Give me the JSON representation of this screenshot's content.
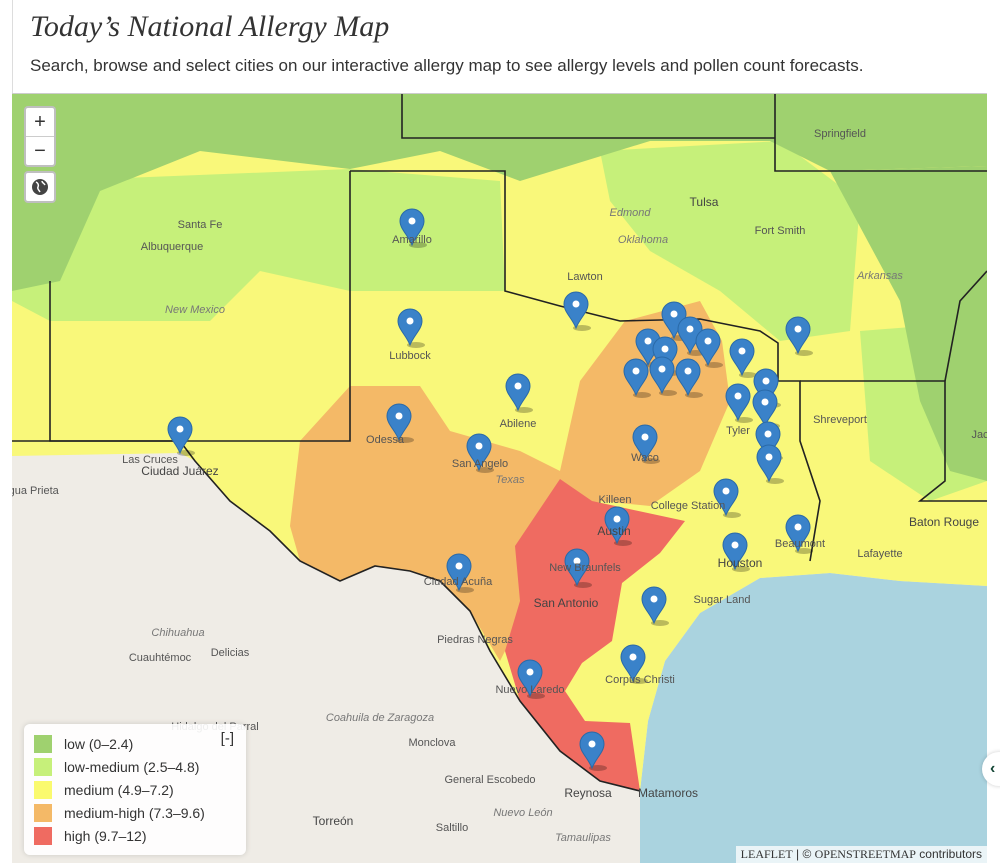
{
  "header": {
    "title": "Today’s National Allergy Map",
    "subtitle": "Search, browse and select cities on our interactive allergy map to see allergy levels and pollen count forecasts."
  },
  "controls": {
    "zoom_in": "+",
    "zoom_out": "−",
    "locate_icon": "globe-icon"
  },
  "legend": {
    "toggle": "[-]",
    "items": [
      {
        "label": "low (0–2.4)",
        "color": "#9fd16f"
      },
      {
        "label": "low-medium (2.5–4.8)",
        "color": "#c6f07a"
      },
      {
        "label": "medium (4.9–7.2)",
        "color": "#fafa6e"
      },
      {
        "label": "medium-high (7.3–9.6)",
        "color": "#f4b967"
      },
      {
        "label": "high (9.7–12)",
        "color": "#ef6b61"
      }
    ]
  },
  "attribution": {
    "leaflet": "LEAFLET",
    "sep": " | © ",
    "osm": "OPENSTREETMAP",
    "tail": " contributors"
  },
  "colors": {
    "water": "#aad3df",
    "land": "#efece6",
    "marker": "#3a82c9"
  },
  "labels": [
    "Springfield",
    "Santa Fe",
    "Albuquerque",
    "Edmond",
    "Oklahoma",
    "Tulsa",
    "Fort Smith",
    "Arkansas",
    "Amarillo",
    "Lawton",
    "New Mexico",
    "Lubbock",
    "Abilene",
    "Odessa",
    "Las Cruces",
    "Shreveport",
    "Tyler",
    "Ciudad Juárez",
    "San Angelo",
    "Texas",
    "Waco",
    "Killeen",
    "College Station",
    "Austin",
    "Baton Rouge",
    "Lafayette",
    "Beaumont",
    "Houston",
    "New Braunfels",
    "San Antonio",
    "Sugar Land",
    "Ciudad Acuña",
    "Piedras Negras",
    "Chihuahua",
    "Cuauhtémoc",
    "Delicias",
    "Nuevo Laredo",
    "Corpus Christi",
    "Coahuila de Zaragoza",
    "Hidalgo del Parral",
    "Monclova",
    "General Escobedo",
    "Reynosa",
    "Matamoros",
    "Nuevo León",
    "Torreón",
    "Saltillo",
    "Tamaulipas",
    "Agua Prieta",
    "Jac"
  ]
}
